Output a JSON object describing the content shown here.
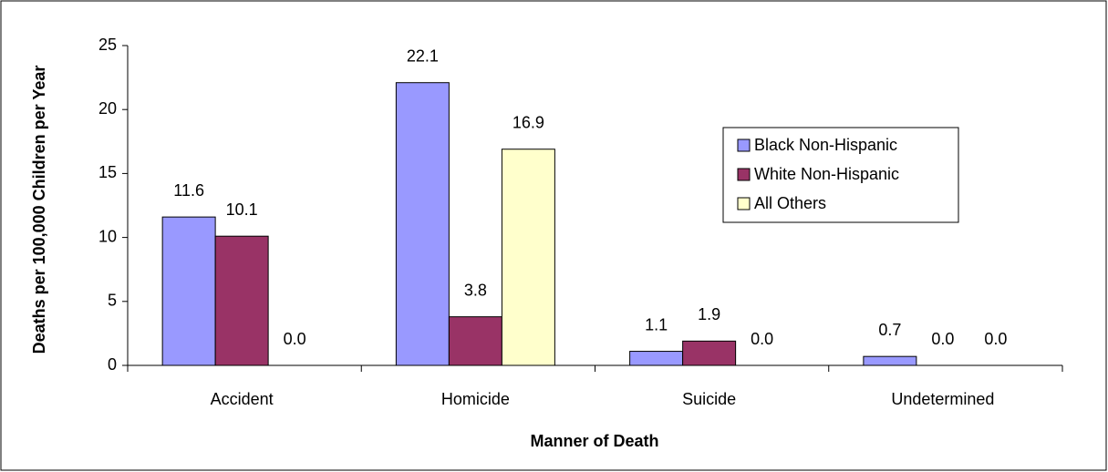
{
  "chart_data": {
    "type": "bar",
    "x_label": "Manner of Death",
    "y_label": "Deaths per 100,000 Children per Year",
    "categories": [
      "Accident",
      "Homicide",
      "Suicide",
      "Undetermined"
    ],
    "series": [
      {
        "name": "Black Non-Hispanic",
        "color": "#9999ff",
        "values": [
          11.6,
          22.1,
          1.1,
          0.7
        ],
        "value_labels": [
          "11.6",
          "22.1",
          "1.1",
          "0.7"
        ]
      },
      {
        "name": "White Non-Hispanic",
        "color": "#993366",
        "values": [
          10.1,
          3.8,
          1.9,
          0
        ],
        "value_labels": [
          "10.1",
          "3.8",
          "1.9",
          "0.0"
        ]
      },
      {
        "name": "All Others",
        "color": "#ffffcc",
        "values": [
          0,
          16.9,
          0,
          0
        ],
        "value_labels": [
          "0.0",
          "16.9",
          "0.0",
          "0.0"
        ]
      }
    ],
    "ylim": [
      0,
      25
    ],
    "yticks": [
      0,
      5,
      10,
      15,
      20,
      25
    ],
    "grid": false,
    "legend": "upper right"
  }
}
